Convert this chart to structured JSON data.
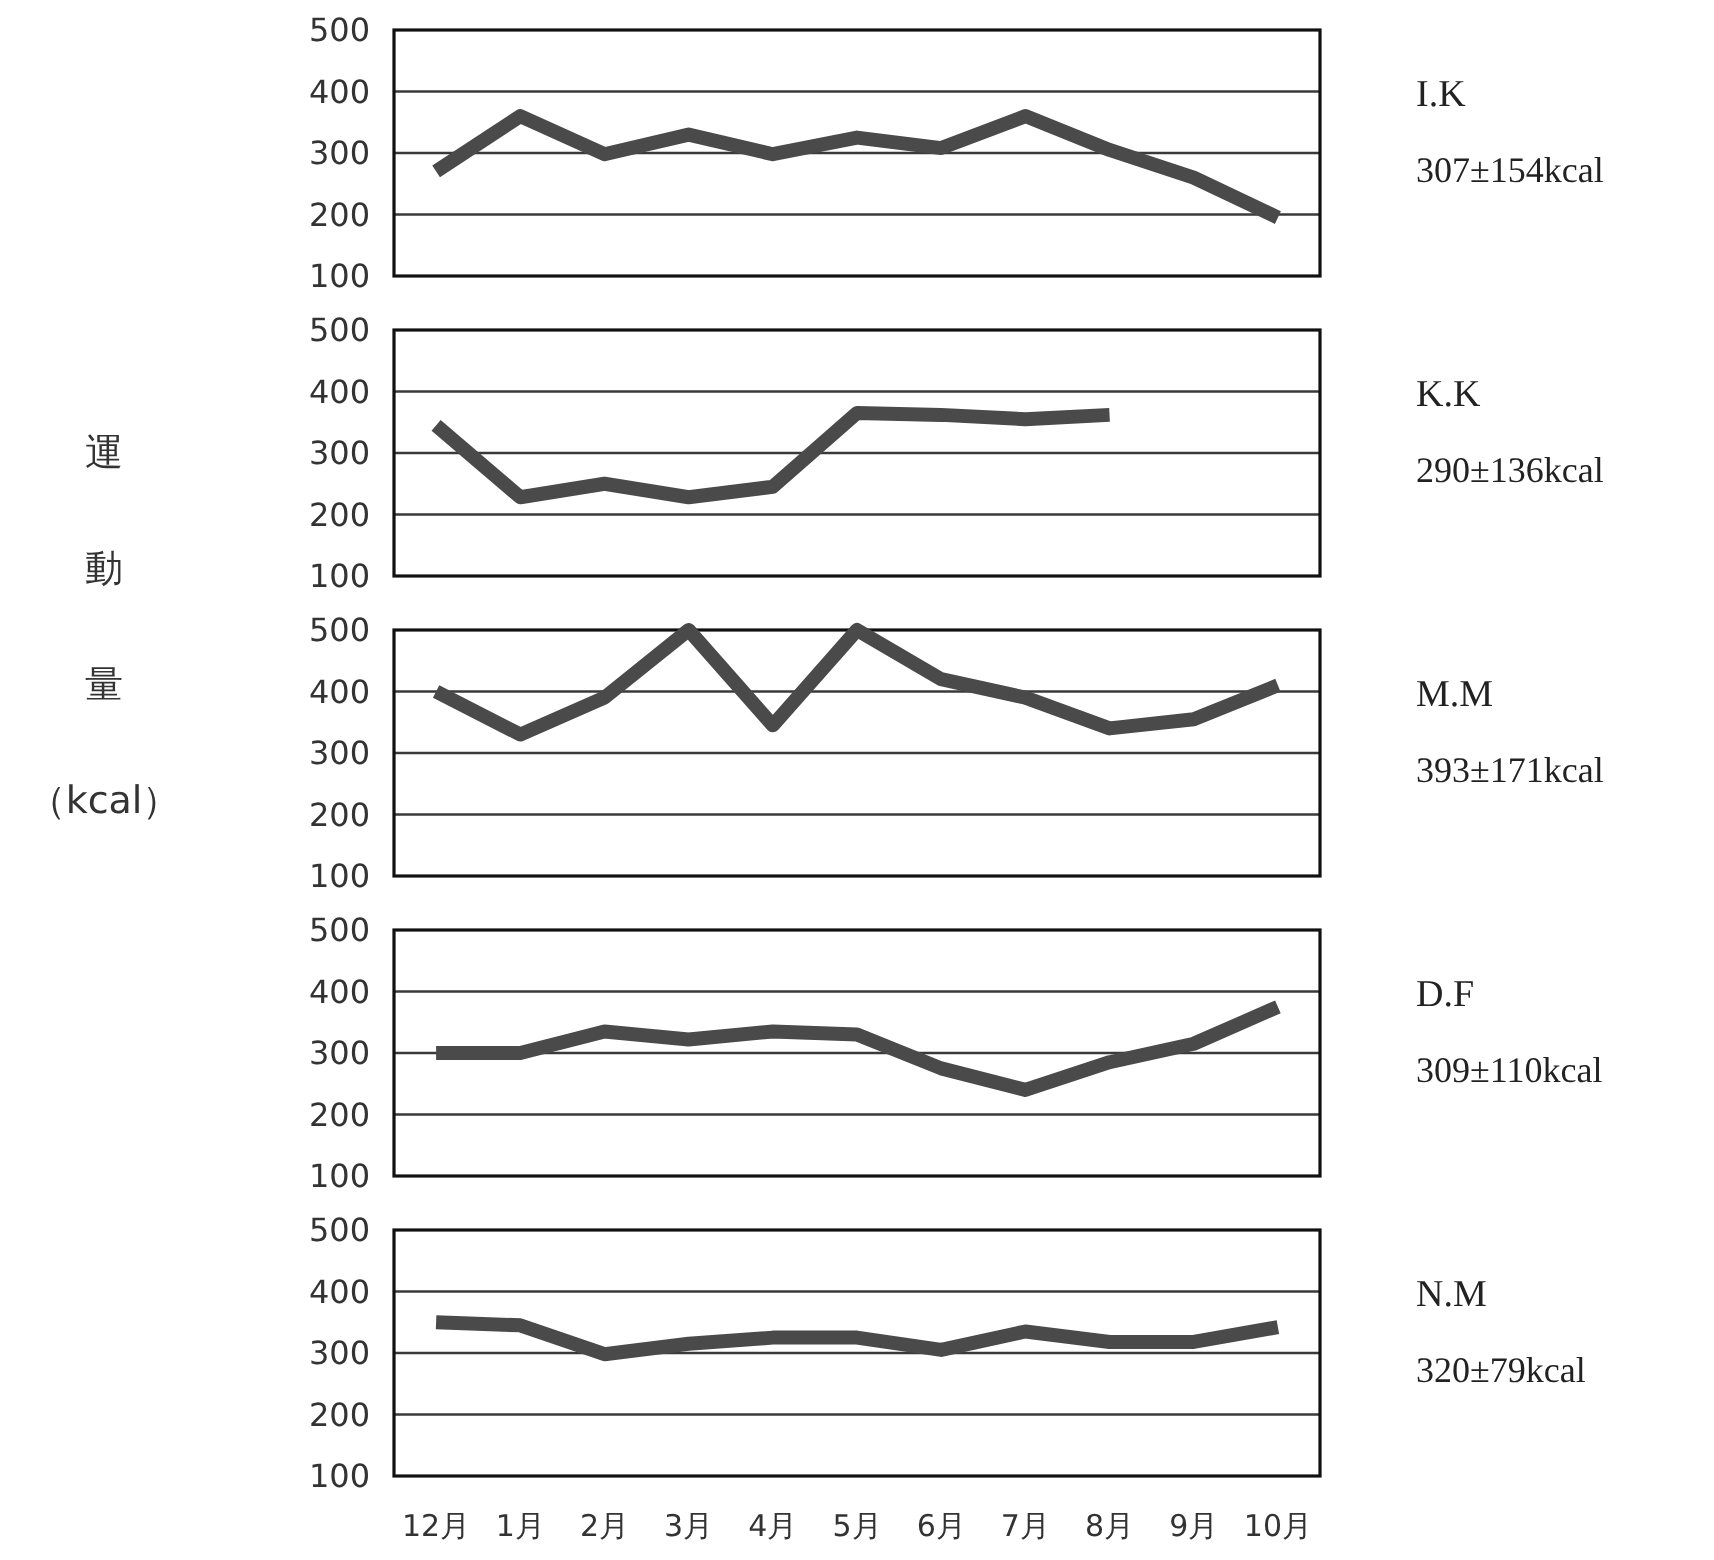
{
  "chart_data": [
    {
      "type": "line",
      "categories": [
        null,
        null,
        null,
        null,
        null,
        null,
        null,
        null,
        null,
        null,
        null
      ],
      "ylim": [
        100,
        500
      ],
      "yticks": [
        100,
        200,
        300,
        400,
        500
      ],
      "grid": "y",
      "tick_labels": "y",
      "series": [
        {
          "name": "I.K",
          "color": "#4a4a4a",
          "values": [
            270,
            360,
            298,
            330,
            298,
            325,
            308,
            360,
            305,
            260,
            195
          ]
        }
      ],
      "annotations": [
        "307±154kcal"
      ]
    },
    {
      "type": "line",
      "categories": [
        null,
        null,
        null,
        null,
        null,
        null,
        null,
        null,
        null,
        null,
        null
      ],
      "ylim": [
        100,
        500
      ],
      "yticks": [
        100,
        200,
        300,
        400,
        500
      ],
      "grid": "y",
      "tick_labels": "y",
      "series": [
        {
          "name": "K.K",
          "color": "#4a4a4a",
          "values": [
            345,
            228,
            250,
            228,
            245,
            365,
            362,
            355,
            362,
            null,
            null
          ]
        }
      ],
      "annotations": [
        "290±136kcal"
      ]
    },
    {
      "type": "line",
      "categories": [
        null,
        null,
        null,
        null,
        null,
        null,
        null,
        null,
        null,
        null,
        null
      ],
      "ylim": [
        100,
        500
      ],
      "yticks": [
        100,
        200,
        300,
        400,
        500
      ],
      "grid": "y",
      "tick_labels": "y",
      "ylabel": "運動量（kcal）",
      "series": [
        {
          "name": "M.M",
          "color": "#4a4a4a",
          "values": [
            400,
            330,
            390,
            500,
            345,
            500,
            420,
            390,
            340,
            355,
            410
          ]
        }
      ],
      "annotations": [
        "393±171kcal"
      ]
    },
    {
      "type": "line",
      "categories": [
        null,
        null,
        null,
        null,
        null,
        null,
        null,
        null,
        null,
        null,
        null
      ],
      "ylim": [
        100,
        500
      ],
      "yticks": [
        100,
        200,
        300,
        400,
        500
      ],
      "grid": "y",
      "tick_labels": "y",
      "series": [
        {
          "name": "D.F",
          "color": "#4a4a4a",
          "values": [
            300,
            300,
            335,
            322,
            335,
            330,
            275,
            240,
            285,
            315,
            375
          ]
        }
      ],
      "annotations": [
        "309±110kcal"
      ]
    },
    {
      "type": "line",
      "categories": [
        "12月",
        "1月",
        "2月",
        "3月",
        "4月",
        "5月",
        "6月",
        "7月",
        "8月",
        "9月",
        "10月"
      ],
      "ylim": [
        100,
        500
      ],
      "yticks": [
        100,
        200,
        300,
        400,
        500
      ],
      "grid": "y",
      "series": [
        {
          "name": "N.M",
          "color": "#4a4a4a",
          "values": [
            350,
            345,
            298,
            315,
            325,
            325,
            305,
            335,
            318,
            318,
            342
          ]
        }
      ],
      "annotations": [
        "320±79kcal"
      ]
    }
  ]
}
